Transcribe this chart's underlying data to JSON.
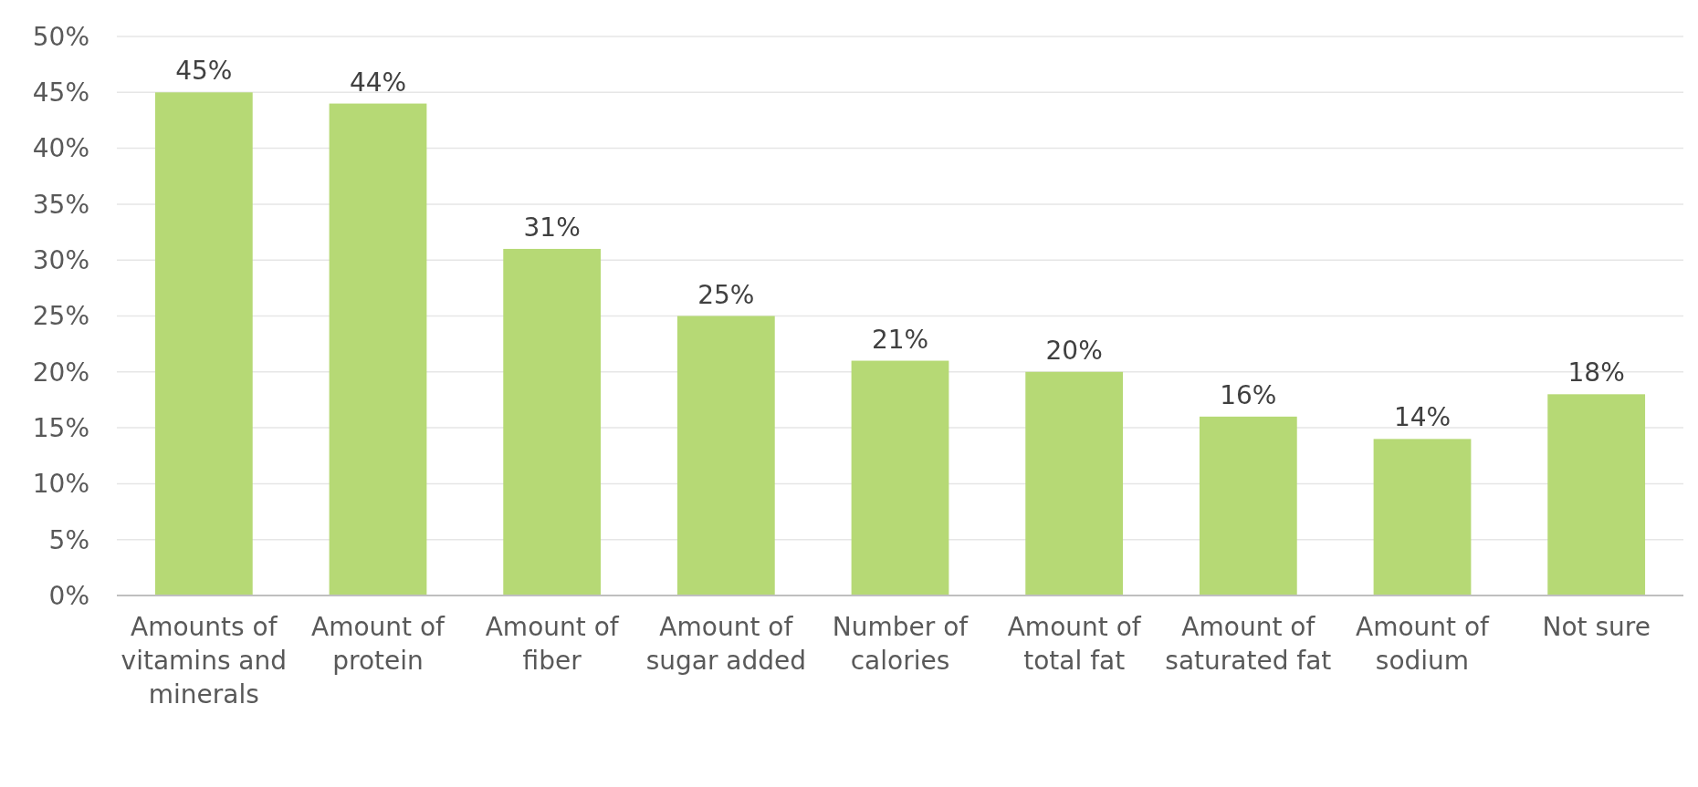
{
  "chart_data": {
    "type": "bar",
    "categories": [
      "Amounts of vitamins and minerals",
      "Amount of protein",
      "Amount of fiber",
      "Amount of sugar added",
      "Number of calories",
      "Amount of total fat",
      "Amount of saturated fat",
      "Amount of sodium",
      "Not sure"
    ],
    "values": [
      45,
      44,
      31,
      25,
      21,
      20,
      16,
      14,
      18
    ],
    "value_labels": [
      "45%",
      "44%",
      "31%",
      "25%",
      "21%",
      "20%",
      "16%",
      "14%",
      "18%"
    ],
    "color": "#b6d975",
    "ylim": [
      0,
      50
    ],
    "yticks": [
      {
        "value": 0,
        "label": "0%"
      },
      {
        "value": 5,
        "label": "5%"
      },
      {
        "value": 10,
        "label": "10%"
      },
      {
        "value": 15,
        "label": "15%"
      },
      {
        "value": 20,
        "label": "20%"
      },
      {
        "value": 25,
        "label": "25%"
      },
      {
        "value": 30,
        "label": "30%"
      },
      {
        "value": 35,
        "label": "35%"
      },
      {
        "value": 40,
        "label": "40%"
      },
      {
        "value": 45,
        "label": "45%"
      },
      {
        "value": 50,
        "label": "50%"
      }
    ],
    "grid": "y"
  }
}
